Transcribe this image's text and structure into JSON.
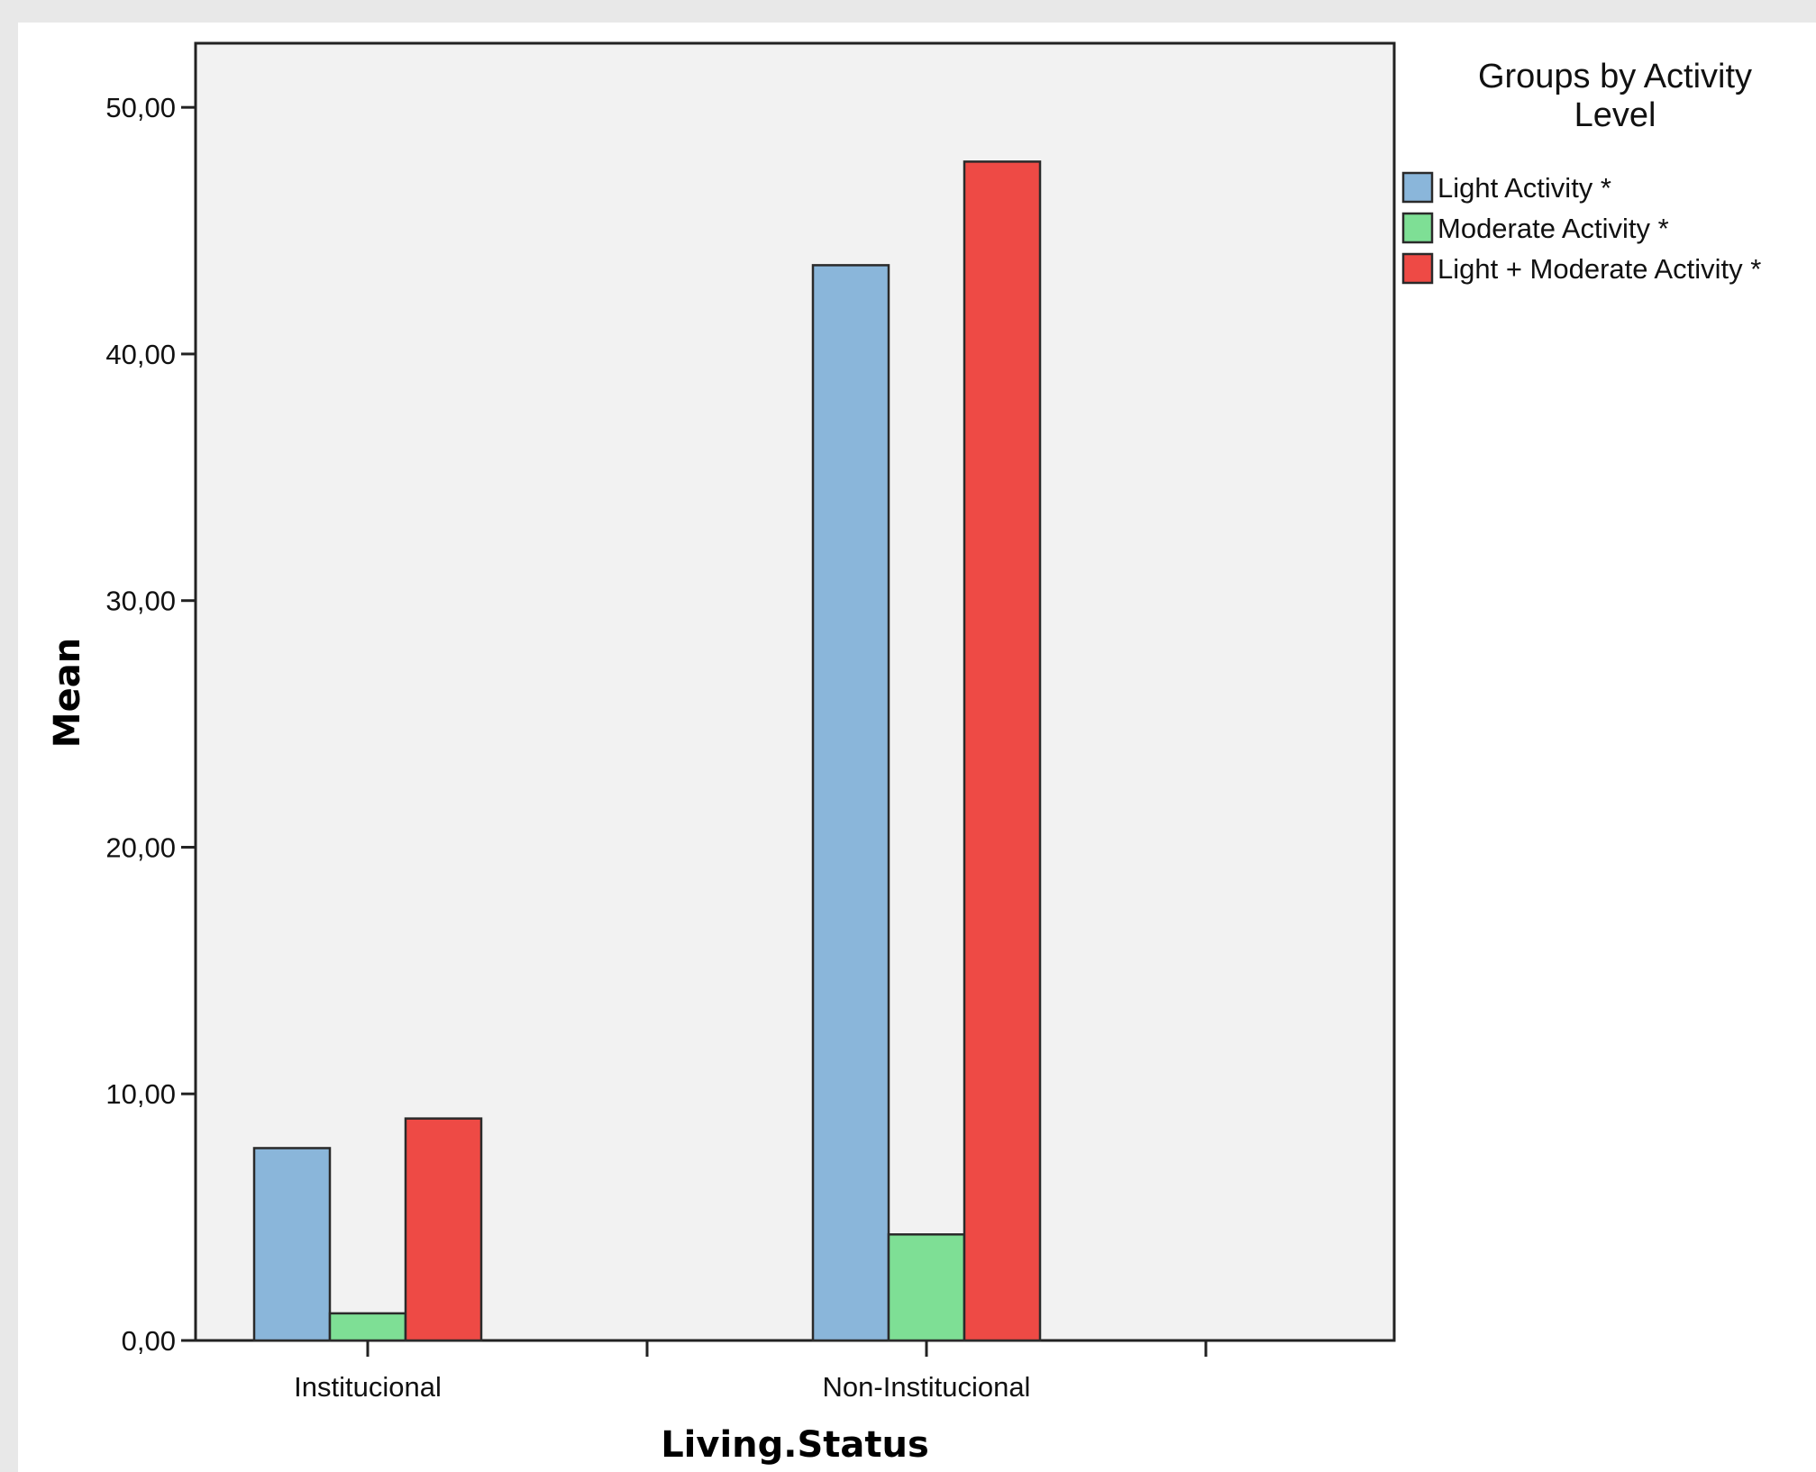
{
  "chart_data": {
    "type": "bar",
    "title": "",
    "xlabel": "Living.Status",
    "ylabel": "Mean",
    "categories": [
      "Institucional",
      "Non-Institucional"
    ],
    "series": [
      {
        "name": "Light Activity *",
        "color": "#8ab6da",
        "values": [
          7.8,
          43.6
        ]
      },
      {
        "name": "Moderate Activity *",
        "color": "#7edf95",
        "values": [
          1.1,
          4.3
        ]
      },
      {
        "name": "Light + Moderate Activity *",
        "color": "#ee4a45",
        "values": [
          9.0,
          47.8
        ]
      }
    ],
    "ylim": [
      0,
      52.6
    ],
    "yticks": [
      0,
      10,
      20,
      30,
      40,
      50
    ],
    "ytick_labels": [
      "0,00",
      "10,00",
      "20,00",
      "30,00",
      "40,00",
      "50,00"
    ],
    "grid": false,
    "legend": {
      "title_lines": [
        "Groups by Activity",
        "Level"
      ],
      "placement": "right"
    },
    "plot_background": "#f2f2f2"
  }
}
